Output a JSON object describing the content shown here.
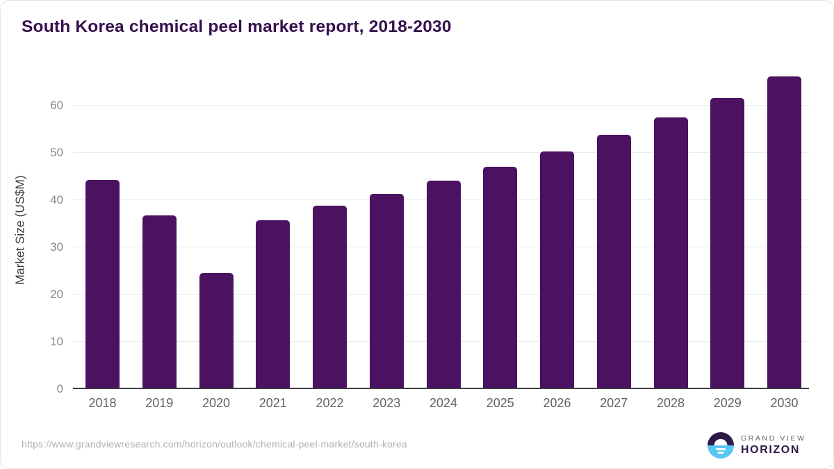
{
  "page": {
    "title": "South Korea chemical peel market report, 2018-2030",
    "source_url": "https://www.grandviewresearch.com/horizon/outlook/chemical-peel-market/south-korea"
  },
  "logo": {
    "brand_top": "GRAND VIEW",
    "brand_bottom": "HORIZON"
  },
  "chart_data": {
    "type": "bar",
    "title": "South Korea chemical peel market report, 2018-2030",
    "categories": [
      "2018",
      "2019",
      "2020",
      "2021",
      "2022",
      "2023",
      "2024",
      "2025",
      "2026",
      "2027",
      "2028",
      "2029",
      "2030"
    ],
    "values": [
      43.9,
      36.4,
      24.2,
      35.4,
      38.5,
      41.0,
      43.8,
      46.7,
      50.0,
      53.5,
      57.2,
      61.3,
      65.9
    ],
    "xlabel": "",
    "ylabel": "Market Size (US$M)",
    "ylim": [
      0,
      67
    ],
    "yticks": [
      0,
      10,
      20,
      30,
      40,
      50,
      60
    ],
    "grid": true,
    "legend": "none",
    "bar_color": "#4a1261"
  },
  "colors": {
    "title": "#36104e",
    "bar": "#4a1261",
    "axis_title": "#3c4043",
    "y_tick": "#85898d",
    "x_tick": "#5f6368",
    "gridline": "#ebebeb",
    "baseline": "#3f3f3f",
    "source_url": "#b0b0b0",
    "logo_purple": "#2e1a47",
    "logo_blue": "#5ac6f3"
  }
}
